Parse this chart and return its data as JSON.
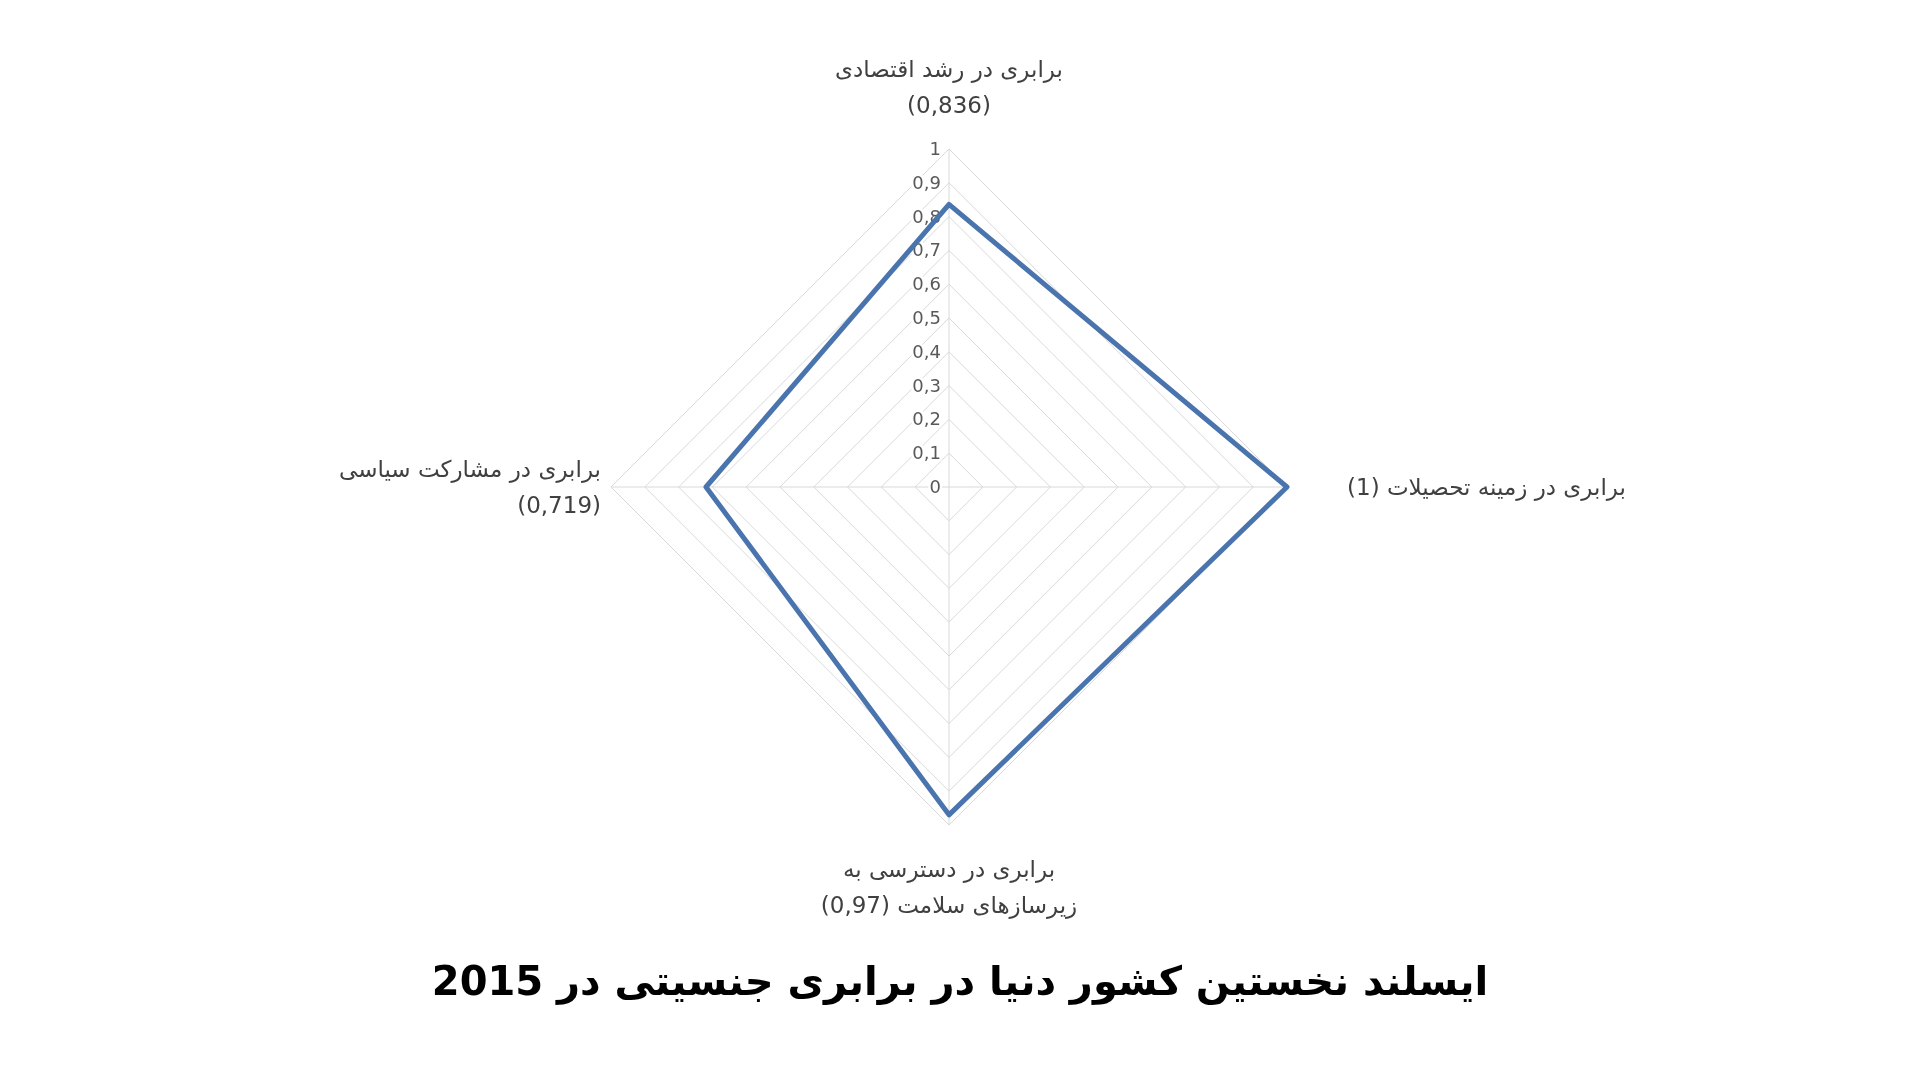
{
  "chart_data": {
    "type": "radar",
    "title": "ایسلند نخستین کشور دنیا در برابری جنسیتی در 2015",
    "categories": [
      "برابری در رشد اقتصادی\n(0,836)",
      "برابری در زمینه تحصیلات (1)",
      "برابری در دسترسی به\nزیرسازهای سلامت (0,97)",
      "برابری در مشارکت سیاسی\n(0,719)"
    ],
    "series": [
      {
        "color": "#4a74ad",
        "values": [
          0.836,
          1,
          0.97,
          0.719
        ]
      }
    ],
    "ylim": [
      0,
      1
    ],
    "yticks": [
      {
        "value": 0,
        "label": "0"
      },
      {
        "value": 0.1,
        "label": "0,1"
      },
      {
        "value": 0.2,
        "label": "0,2"
      },
      {
        "value": 0.3,
        "label": "0,3"
      },
      {
        "value": 0.4,
        "label": "0,4"
      },
      {
        "value": 0.5,
        "label": "0,5"
      },
      {
        "value": 0.6,
        "label": "0,6"
      },
      {
        "value": 0.7,
        "label": "0,7"
      },
      {
        "value": 0.8,
        "label": "0,8"
      },
      {
        "value": 0.9,
        "label": "0,9"
      },
      {
        "value": 1,
        "label": "1"
      }
    ],
    "grid": true
  }
}
